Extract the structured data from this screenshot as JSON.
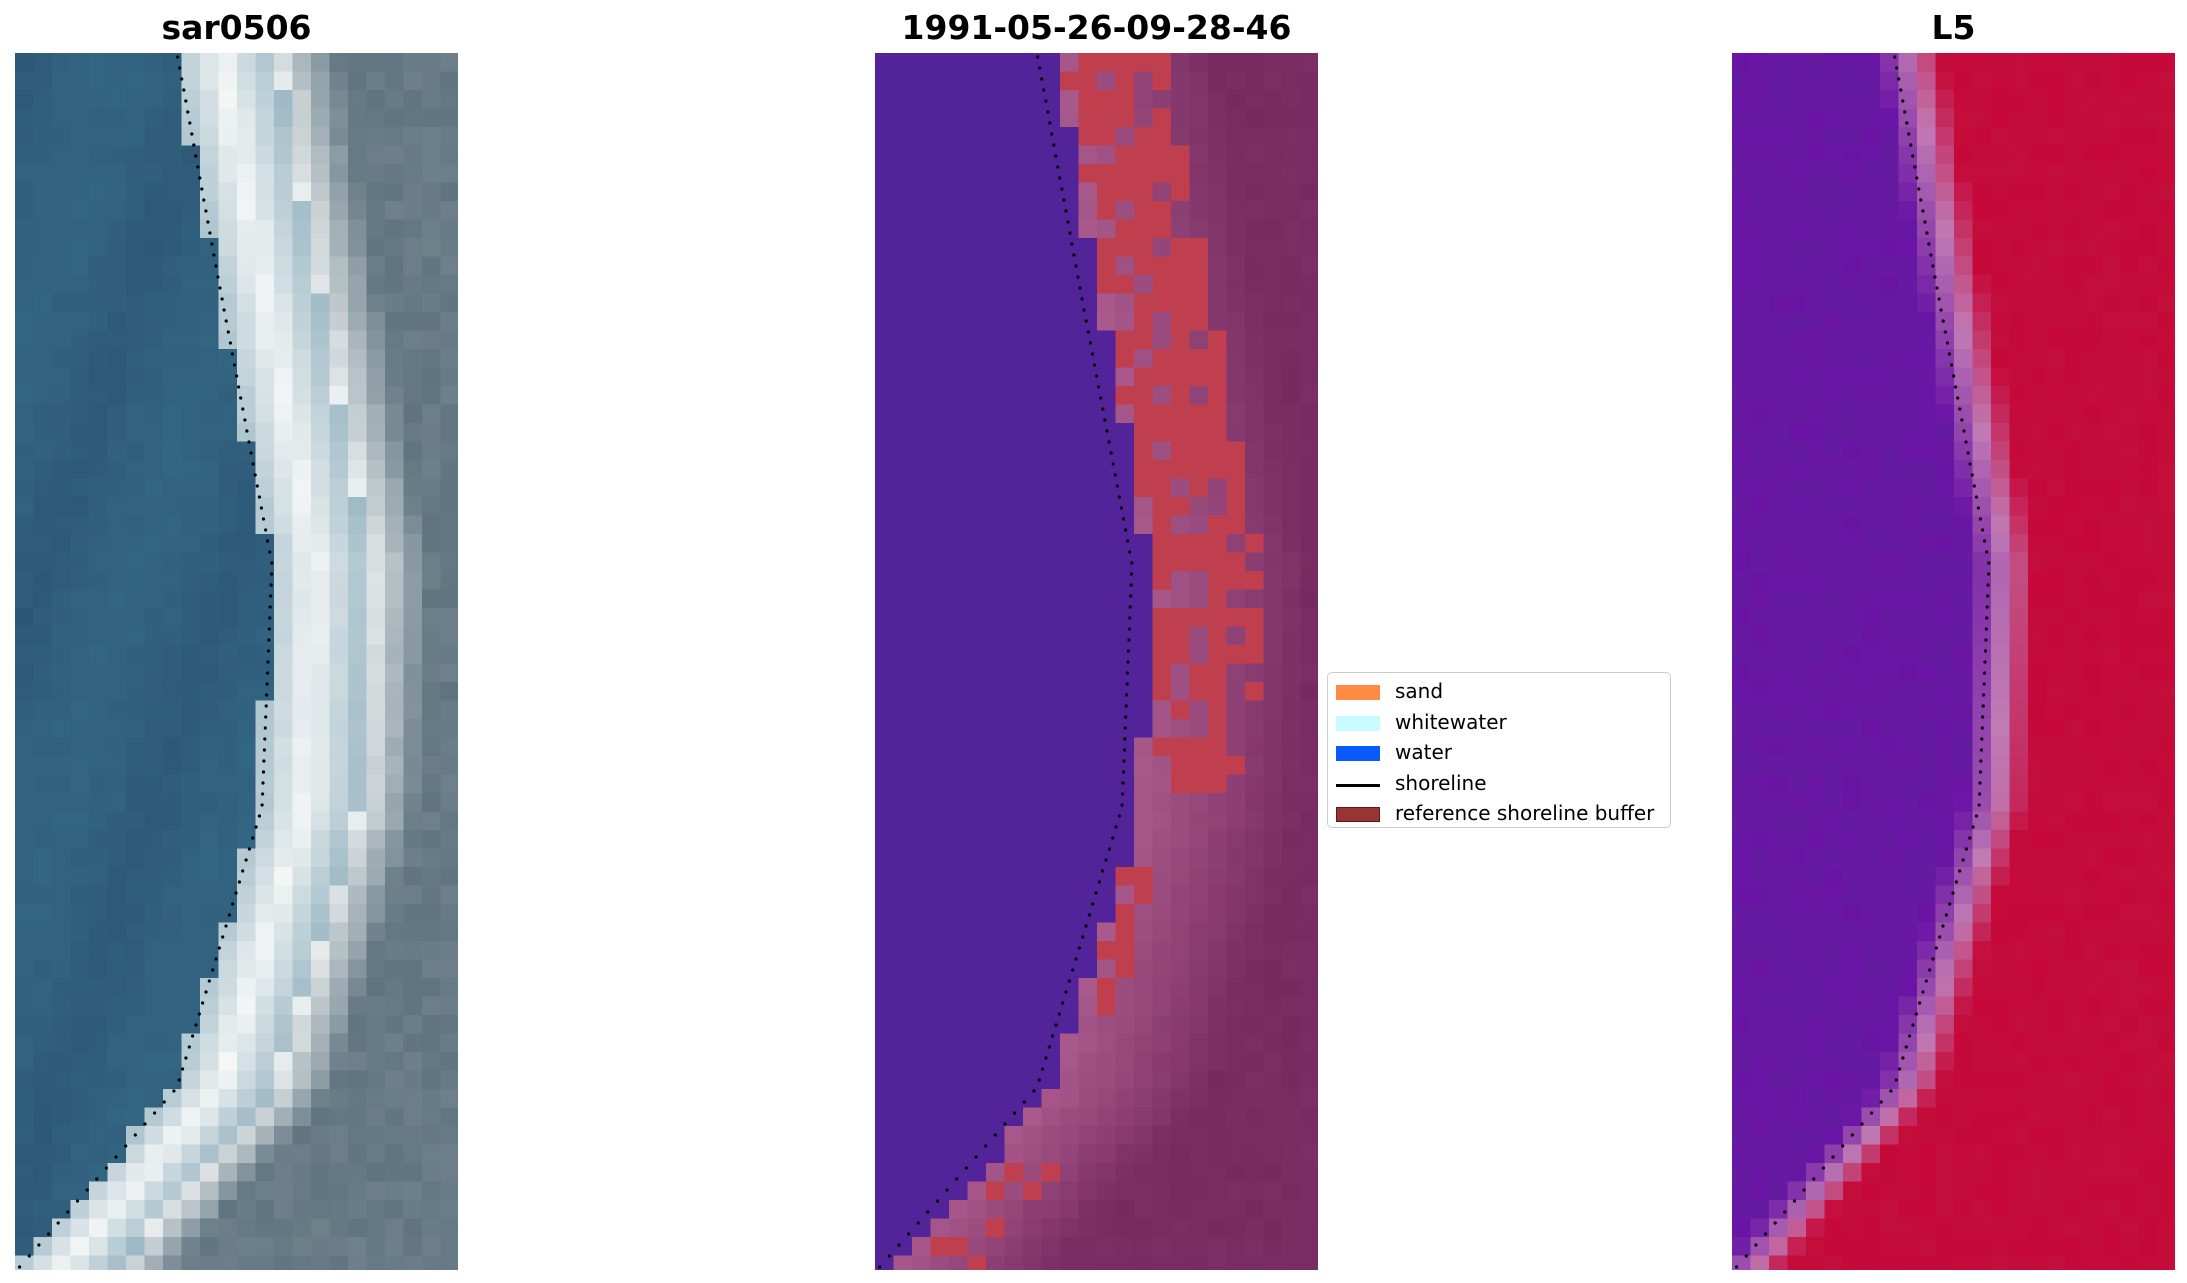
{
  "panels": [
    {
      "title": "sar0506",
      "kind": "rgb"
    },
    {
      "title": "1991-05-26-09-28-46",
      "kind": "classified"
    },
    {
      "title": "L5",
      "kind": "index"
    }
  ],
  "legend": {
    "items": [
      {
        "label": "sand",
        "color": "#ff8c42",
        "type": "patch"
      },
      {
        "label": "whitewater",
        "color": "#c8fbff",
        "type": "patch"
      },
      {
        "label": "water",
        "color": "#0a5bff",
        "type": "patch"
      },
      {
        "label": "shoreline",
        "color": "#000000",
        "type": "line"
      },
      {
        "label": "reference shoreline buffer",
        "color": "#9b3234",
        "type": "patch"
      }
    ]
  },
  "colors": {
    "rgb_water_dark": "#2a4f6e",
    "rgb_water_light": "#36708c",
    "rgb_surf": "#eef2f2",
    "rgb_land": "#5f7480",
    "class_water": "#53239a",
    "class_land": "#7a2e63",
    "class_buffer": "#c03f4e",
    "index_water": "#6a14a6",
    "index_land": "#c6093a",
    "index_edge": "#c07ab4"
  }
}
